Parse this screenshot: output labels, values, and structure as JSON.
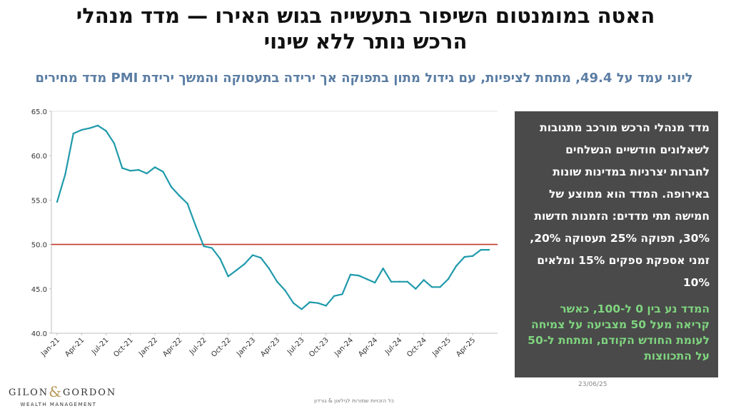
{
  "title_line1": "האטה במומנטום השיפור בתעשייה בגוש האירו — מדד מנהלי",
  "title_line2": "הרכש נותר ללא שינוי",
  "subtitle": "ליוני עמד על 49.4, מתחת לציפיות, עם גידול מתון בתפוקה אך ירידה בתעסוקה והמשך ירידת PMI מדד מחירים",
  "panel": {
    "paragraph1": "מדד מנהלי הרכש מורכב  מתגובות לשאלונים חודשיים הנשלחים לחברות יצרניות במדינות שונות באירופה. המדד הוא ממוצע של חמישה תתי מדדים: הזמנות חדשות 30%, תפוקה 25% תעסוקה 20%, זמני אספקת ספקים 15% ומלאים 10%",
    "paragraph2": "המדד נע בין 0 ל-100, כאשר קריאה מעל 50 מצביעה על צמיחה לעומת החודש הקודם, ומתחת ל-50 על התכווצות",
    "text_color": "#ffffff",
    "highlight_color": "#7fd47f",
    "background": "#4a4a4a"
  },
  "logo": {
    "left": "GILON",
    "right": "GORDON",
    "amp": "&",
    "sub": "WEALTH MANAGEMENT"
  },
  "date": "23/06/25",
  "footer": "כל הזכויות שמורות לגילאון & גורדון",
  "chart_data": {
    "type": "line",
    "series_color": "#1f9aab",
    "reference_line": {
      "y": 50,
      "color": "#c0392b"
    },
    "ylim": [
      40,
      65
    ],
    "yticks": [
      40.0,
      45.0,
      50.0,
      55.0,
      60.0,
      65.0
    ],
    "ytick_labels": [
      "40.0",
      "45.0",
      "50.0",
      "55.0",
      "60.0",
      "65.0"
    ],
    "xtick_labels": [
      "Jan-21",
      "Apr-21",
      "Jul-21",
      "Oct-21",
      "Jan-22",
      "Apr-22",
      "Jul-22",
      "Oct-22",
      "Jan-23",
      "Apr-23",
      "Jul-23",
      "Oct-23",
      "Jan-24",
      "Apr-24",
      "Jul-24",
      "Oct-24",
      "Jan-25",
      "Apr-25"
    ],
    "x": [
      "Jan-21",
      "Feb-21",
      "Mar-21",
      "Apr-21",
      "May-21",
      "Jun-21",
      "Jul-21",
      "Aug-21",
      "Sep-21",
      "Oct-21",
      "Nov-21",
      "Dec-21",
      "Jan-22",
      "Feb-22",
      "Mar-22",
      "Apr-22",
      "May-22",
      "Jun-22",
      "Jul-22",
      "Aug-22",
      "Sep-22",
      "Oct-22",
      "Nov-22",
      "Dec-22",
      "Jan-23",
      "Feb-23",
      "Mar-23",
      "Apr-23",
      "May-23",
      "Jun-23",
      "Jul-23",
      "Aug-23",
      "Sep-23",
      "Oct-23",
      "Nov-23",
      "Dec-23",
      "Jan-24",
      "Feb-24",
      "Mar-24",
      "Apr-24",
      "May-24",
      "Jun-24",
      "Jul-24",
      "Aug-24",
      "Sep-24",
      "Oct-24",
      "Nov-24",
      "Dec-24",
      "Jan-25",
      "Feb-25",
      "Mar-25",
      "Apr-25",
      "May-25",
      "Jun-25"
    ],
    "values": [
      54.8,
      57.9,
      62.5,
      62.9,
      63.1,
      63.4,
      62.8,
      61.4,
      58.6,
      58.3,
      58.4,
      58.0,
      58.7,
      58.2,
      56.5,
      55.5,
      54.6,
      52.1,
      49.8,
      49.6,
      48.4,
      46.4,
      47.1,
      47.8,
      48.8,
      48.5,
      47.3,
      45.8,
      44.8,
      43.4,
      42.7,
      43.5,
      43.4,
      43.1,
      44.2,
      44.4,
      46.6,
      46.5,
      46.1,
      45.7,
      47.3,
      45.8,
      45.8,
      45.8,
      45.0,
      46.0,
      45.2,
      45.2,
      46.1,
      47.6,
      48.6,
      48.7,
      49.4,
      49.4
    ]
  }
}
